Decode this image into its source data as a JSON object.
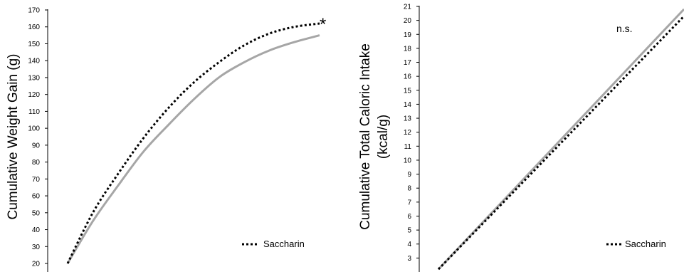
{
  "chart_data": [
    {
      "type": "line",
      "ylabel": "Cumulative Weight Gain (g)",
      "ylim": [
        20,
        170
      ],
      "ytick_step": 10,
      "x_domain": [
        0,
        1
      ],
      "series": [
        {
          "name": "Saccharin",
          "style": "dotted",
          "color": "#000000",
          "x": [
            0,
            0.1,
            0.2,
            0.3,
            0.4,
            0.5,
            0.6,
            0.7,
            0.8,
            0.9,
            1.0
          ],
          "values": [
            20,
            50,
            73,
            94,
            112,
            127,
            139,
            149,
            156,
            160,
            162
          ]
        },
        {
          "style": "solid",
          "color": "#a6a6a6",
          "x": [
            0,
            0.1,
            0.2,
            0.3,
            0.4,
            0.5,
            0.6,
            0.7,
            0.8,
            0.9,
            1.0
          ],
          "values": [
            20,
            45,
            66,
            86,
            102,
            117,
            130,
            139,
            146,
            151,
            155
          ]
        }
      ],
      "annotation": "*",
      "legend": "bottom-right"
    },
    {
      "type": "line",
      "ylabel": "Cumulative Total Caloric Intake (kcal/g)",
      "ylabel_lines": [
        "Cumulative Total Caloric Intake",
        "(kcal/g)"
      ],
      "ylim": [
        2,
        21
      ],
      "ytick_step": 1,
      "ytick_min": 3,
      "x_domain": [
        0,
        1
      ],
      "series": [
        {
          "name": "Saccharin",
          "style": "dotted",
          "color": "#000000",
          "x": [
            0,
            1
          ],
          "values": [
            2.2,
            20.3
          ]
        },
        {
          "style": "solid",
          "color": "#a6a6a6",
          "x": [
            0,
            1
          ],
          "values": [
            2.2,
            20.8
          ]
        }
      ],
      "annotation": "n.s.",
      "legend": "bottom-right"
    }
  ]
}
